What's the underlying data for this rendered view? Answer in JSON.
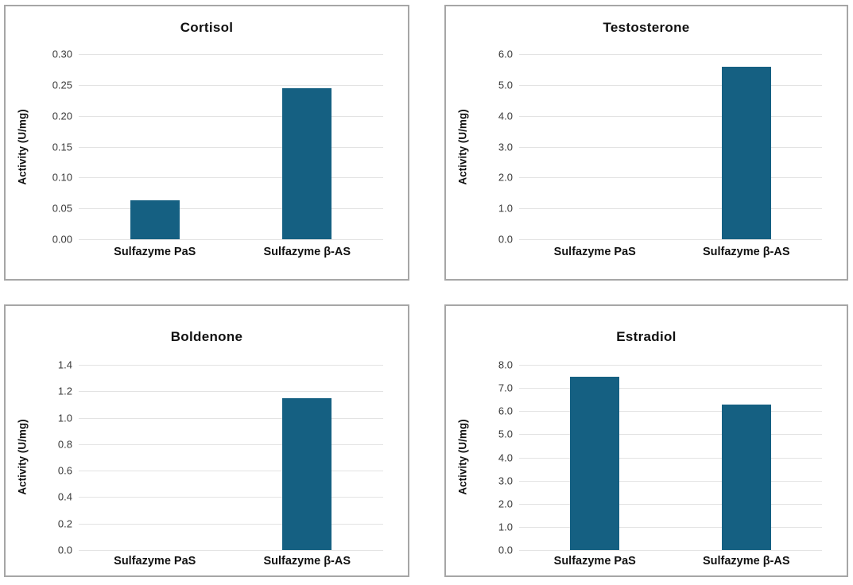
{
  "style": {
    "bar_color": "#156082",
    "panel_border_color": "#a6a6a6",
    "gridline_color": "#e3e3e3",
    "tick_label_color": "#3a3a3a",
    "text_color": "#111111",
    "background_color": "#ffffff"
  },
  "chart_data": [
    {
      "type": "bar",
      "title": "Cortisol",
      "ylabel": "Activity (U/mg)",
      "xlabel": "",
      "categories": [
        "Sulfazyme PaS",
        "Sulfazyme β-AS"
      ],
      "values": [
        0.063,
        0.245
      ],
      "ylim": [
        0,
        0.3
      ],
      "ytick_step": 0.05,
      "ytick_decimals": 2,
      "grid": true,
      "legend": "none"
    },
    {
      "type": "bar",
      "title": "Testosterone",
      "ylabel": "Activity (U/mg)",
      "xlabel": "",
      "categories": [
        "Sulfazyme PaS",
        "Sulfazyme β-AS"
      ],
      "values": [
        0,
        5.6
      ],
      "ylim": [
        0,
        6.0
      ],
      "ytick_step": 1.0,
      "ytick_decimals": 1,
      "grid": true,
      "legend": "none"
    },
    {
      "type": "bar",
      "title": "Boldenone",
      "ylabel": "Activity (U/mg)",
      "xlabel": "",
      "categories": [
        "Sulfazyme PaS",
        "Sulfazyme β-AS"
      ],
      "values": [
        0,
        1.15
      ],
      "ylim": [
        0,
        1.4
      ],
      "ytick_step": 0.2,
      "ytick_decimals": 1,
      "grid": true,
      "legend": "none"
    },
    {
      "type": "bar",
      "title": "Estradiol",
      "ylabel": "Activity (U/mg)",
      "xlabel": "",
      "categories": [
        "Sulfazyme PaS",
        "Sulfazyme β-AS"
      ],
      "values": [
        7.5,
        6.3
      ],
      "ylim": [
        0,
        8.0
      ],
      "ytick_step": 1.0,
      "ytick_decimals": 1,
      "grid": true,
      "legend": "none"
    }
  ]
}
